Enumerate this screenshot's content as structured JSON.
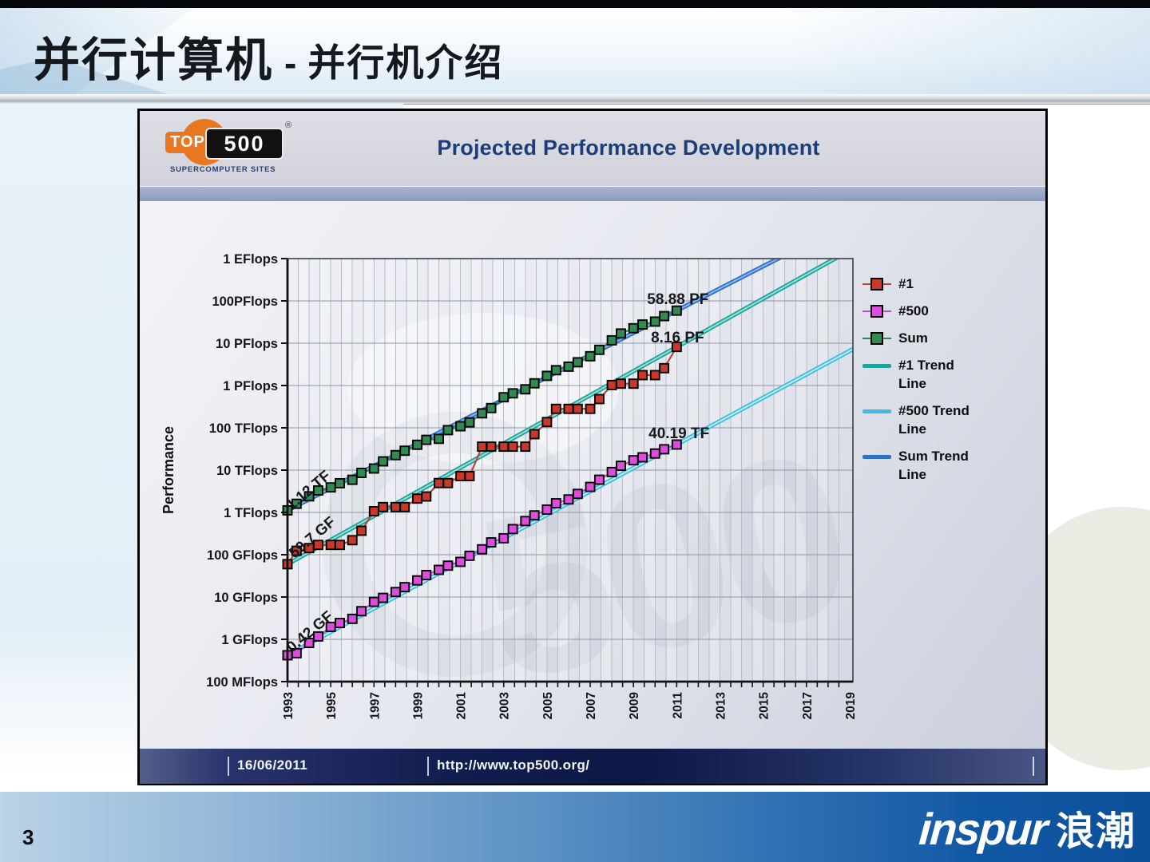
{
  "slide": {
    "top_title": {
      "main": "并行计算机",
      "separator": "-",
      "sub": "并行机介绍"
    },
    "page_number": "3",
    "brand_logo": {
      "latin": "inspur",
      "cjk": "浪潮"
    }
  },
  "chart": {
    "logo": {
      "word_top": "TOP",
      "word_num": "500",
      "registered_mark": "®",
      "subtitle": "SUPERCOMPUTER SITES"
    },
    "header_title": "Projected Performance Development",
    "footer": {
      "date": "16/06/2011",
      "url": "http://www.top500.org/"
    },
    "colors": {
      "header_title": "#1c3d78",
      "logo_orange": "#e87722",
      "footer_bar": "#0d1846"
    }
  },
  "chart_data": {
    "type": "line",
    "title": "Projected Performance Development",
    "ylabel": "Performance",
    "y_scale": "log",
    "grid": "on",
    "legend_position": "right",
    "y_ticks": [
      {
        "label": "1 EFlops",
        "gflops": 1000000000
      },
      {
        "label": "100PFlops",
        "gflops": 100000000
      },
      {
        "label": "10 PFlops",
        "gflops": 10000000
      },
      {
        "label": "1 PFlops",
        "gflops": 1000000
      },
      {
        "label": "100 TFlops",
        "gflops": 100000
      },
      {
        "label": "10 TFlops",
        "gflops": 10000
      },
      {
        "label": "1 TFlops",
        "gflops": 1000
      },
      {
        "label": "100 GFlops",
        "gflops": 100
      },
      {
        "label": "10 GFlops",
        "gflops": 10
      },
      {
        "label": "1 GFlops",
        "gflops": 1
      },
      {
        "label": "100 MFlops",
        "gflops": 0.1
      }
    ],
    "x_tick_years": [
      1993,
      1995,
      1997,
      1999,
      2001,
      2003,
      2005,
      2007,
      2009,
      2011,
      2013,
      2015,
      2017,
      2019
    ],
    "x_domain": [
      1993.45,
      2019.6
    ],
    "y_log_gflops_domain": [
      -1,
      9
    ],
    "vertical_grid_step_years": 0.5,
    "list_dates": [
      1993.45,
      1993.87,
      1994.45,
      1994.87,
      1995.45,
      1995.87,
      1996.45,
      1996.87,
      1997.45,
      1997.87,
      1998.45,
      1998.87,
      1999.45,
      1999.87,
      2000.45,
      2000.87,
      2001.45,
      2001.87,
      2002.45,
      2002.87,
      2003.45,
      2003.87,
      2004.45,
      2004.87,
      2005.45,
      2005.87,
      2006.45,
      2006.87,
      2007.45,
      2007.87,
      2008.45,
      2008.87,
      2009.45,
      2009.87,
      2010.45,
      2010.87,
      2011.45
    ],
    "series": [
      {
        "name": "#1",
        "marker_fill": "#c8392b",
        "line_color": "#b8453a",
        "values_gflops": [
          59.7,
          124,
          143.4,
          170.4,
          170.4,
          170.4,
          220.4,
          368.2,
          1068,
          1338,
          1338,
          1338,
          2121,
          2379,
          4938,
          4938,
          7226,
          7226,
          35860,
          35860,
          35860,
          35860,
          35860,
          70720,
          136800,
          280600,
          280600,
          280600,
          280600,
          478200,
          1026000,
          1105000,
          1105000,
          1759000,
          1759000,
          2566000,
          8162000
        ]
      },
      {
        "name": "#500",
        "marker_fill": "#dd4ddd",
        "line_color": "#c94ac9",
        "values_gflops": [
          0.42,
          0.47,
          0.82,
          1.17,
          1.96,
          2.43,
          3.05,
          4.62,
          7.68,
          9.54,
          13.1,
          17.1,
          24.7,
          33.1,
          43.8,
          55.1,
          67.8,
          94.3,
          134.3,
          195.8,
          245.1,
          403.4,
          624,
          850.6,
          1166,
          1645,
          2026,
          2737,
          4005,
          5929,
          9020,
          12640,
          17100,
          20050,
          24670,
          31110,
          40190
        ]
      },
      {
        "name": "Sum",
        "marker_fill": "#2f8b52",
        "line_color": "#2f8b52",
        "values_gflops": [
          1120,
          1600,
          2400,
          3300,
          3900,
          4900,
          5900,
          8600,
          10900,
          16100,
          22600,
          28700,
          39700,
          51900,
          54800,
          88100,
          108800,
          134400,
          220000,
          293000,
          528000,
          653000,
          813000,
          1127000,
          1690000,
          2300000,
          2790000,
          3540000,
          4920000,
          6970000,
          11700000,
          16950000,
          22600000,
          27600000,
          32400000,
          43700000,
          58880000
        ]
      }
    ],
    "trend_lines": [
      {
        "name": "Sum Trend Line",
        "series": 2,
        "base": "#2e6fc8",
        "core": "#86b4ec"
      },
      {
        "name": "#1 Trend Line",
        "series": 0,
        "base": "#1fa29a",
        "core": "#8fe2da"
      },
      {
        "name": "#500 Trend Line",
        "series": 1,
        "base": "#3fbcdc",
        "core": "#b8ecf8"
      }
    ],
    "annotations": [
      {
        "text": "58.88 PF",
        "t": 2010.08,
        "gflops": 84000000,
        "rot": 0,
        "anchor": "start"
      },
      {
        "text": "8.16 PF",
        "t": 2010.26,
        "gflops": 10500000,
        "rot": 0,
        "anchor": "start"
      },
      {
        "text": "40.19 TF",
        "t": 2010.15,
        "gflops": 57000,
        "rot": 0,
        "anchor": "start"
      },
      {
        "text": "1.12 TF",
        "t": 1994.56,
        "gflops": 2700,
        "rot": -40,
        "anchor": "middle"
      },
      {
        "text": "59.7 GF",
        "t": 1994.74,
        "gflops": 210,
        "rot": -40,
        "anchor": "middle"
      },
      {
        "text": "0.42 GF",
        "t": 1994.63,
        "gflops": 1.24,
        "rot": -40,
        "anchor": "middle"
      }
    ],
    "legend": [
      {
        "label": "#1",
        "type": "marker",
        "fill": "#c8392b",
        "line": "#b8453a"
      },
      {
        "label": "#500",
        "type": "marker",
        "fill": "#dd4ddd",
        "line": "#c94ac9"
      },
      {
        "label": "Sum",
        "type": "marker",
        "fill": "#2f8b52",
        "line": "#2f8b52"
      },
      {
        "label": "#1 Trend\nLine",
        "type": "line",
        "color": "#1fa29a"
      },
      {
        "label": "#500 Trend\n Line",
        "type": "line",
        "color": "#3fbcdc"
      },
      {
        "label": "Sum Trend\n  Line",
        "type": "line",
        "color": "#2e6fc8"
      }
    ],
    "watermark_text": "500"
  }
}
